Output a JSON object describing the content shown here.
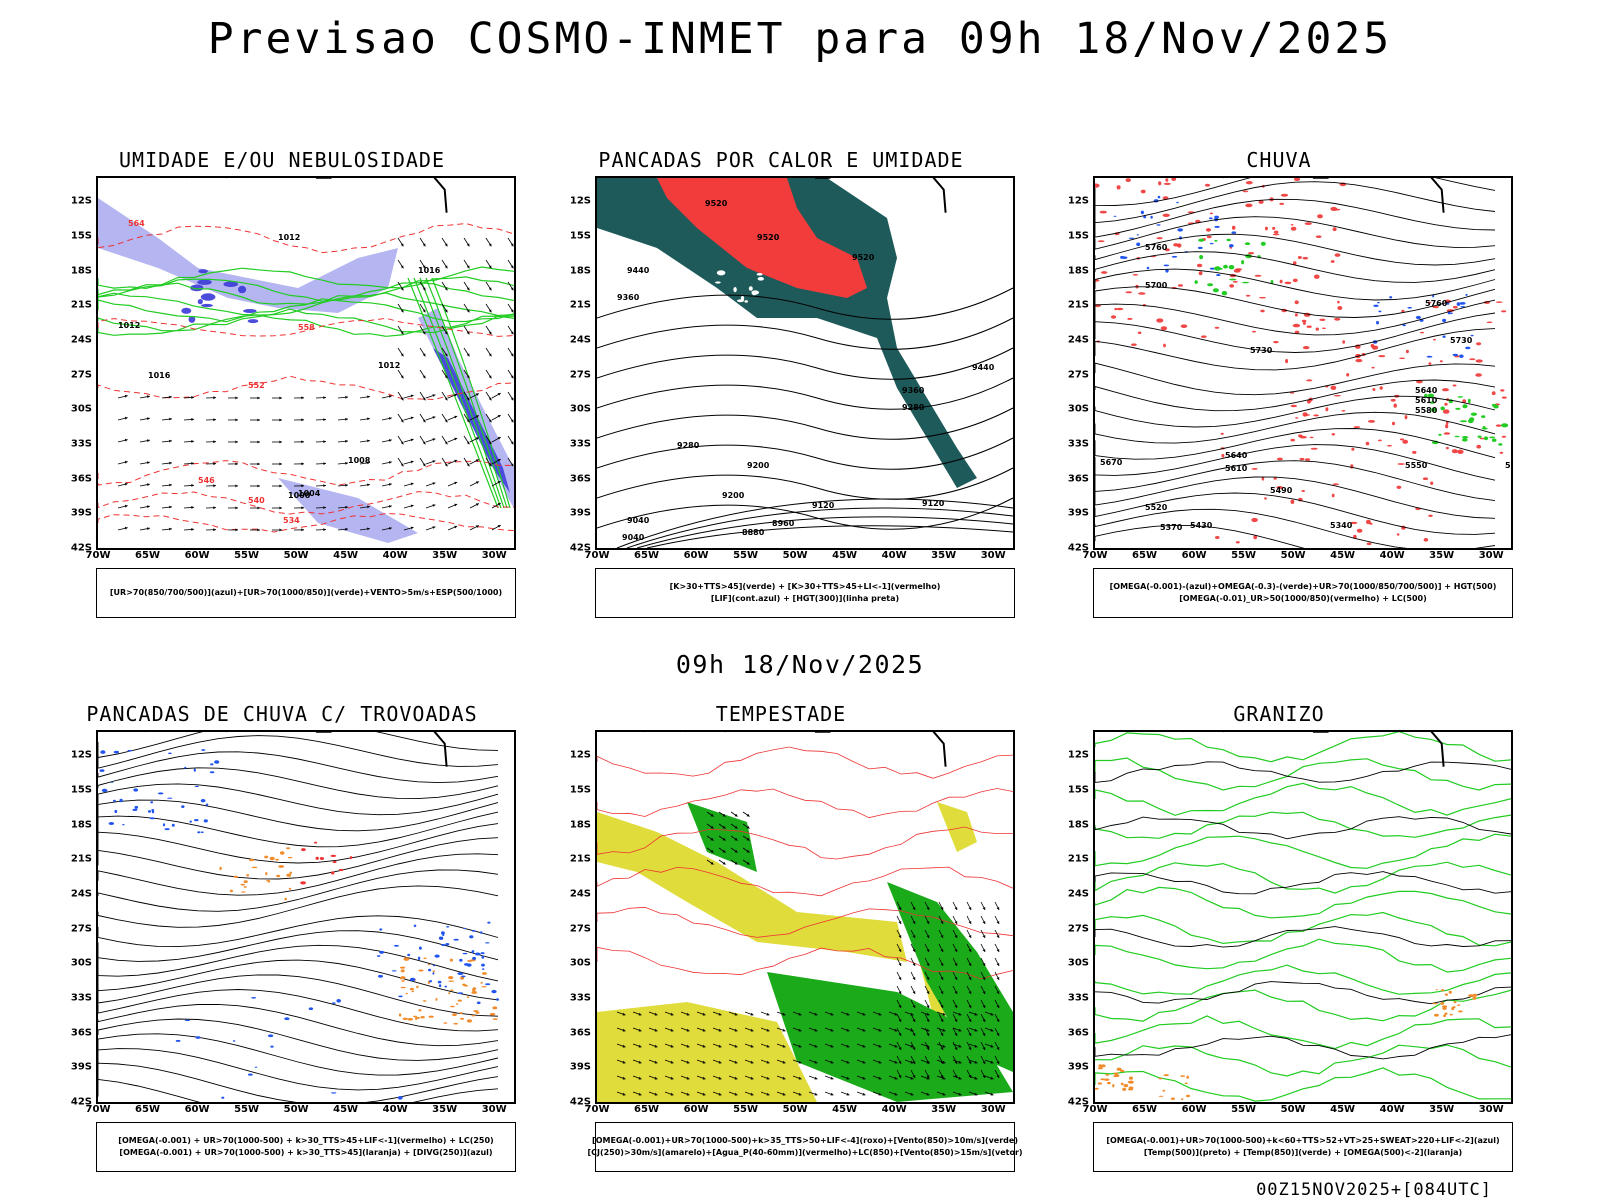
{
  "header": {
    "title": "Previsao COSMO-INMET  para 09h 18/Nov/2025",
    "mid_title": "09h 18/Nov/2025",
    "footer": "00Z15NOV2025+[084UTC]"
  },
  "axes": {
    "lat_ticks": [
      "12S",
      "15S",
      "18S",
      "21S",
      "24S",
      "27S",
      "30S",
      "33S",
      "36S",
      "39S",
      "42S"
    ],
    "lon_ticks": [
      "70W",
      "65W",
      "60W",
      "55W",
      "50W",
      "45W",
      "40W",
      "35W",
      "30W"
    ]
  },
  "colors": {
    "blue_shade": "#a8a8f0",
    "dark_blue_shade": "#3a3ad8",
    "green_contour": "#22cc22",
    "red_contour": "#ee3333",
    "dark_teal": "#1f5a5a",
    "red_fill": "#f23c3c",
    "yellow_fill": "#e0dc3c",
    "green_fill": "#1aaa1a",
    "orange": "#f08c2c",
    "blue_dots": "#2255ee"
  },
  "panels": [
    {
      "id": "umidade",
      "title": "UMIDADE E/OU NEBULOSIDADE",
      "legend": [
        "[UR>70(850/700/500)](azul)+[UR>70(1000/850)](verde)+VENTO>5m/s+ESP(500/1000)"
      ],
      "labels": [
        "1012",
        "1012",
        "1016",
        "1016",
        "1012",
        "1008",
        "1004",
        "1000",
        "564",
        "558",
        "552",
        "546",
        "540",
        "534"
      ]
    },
    {
      "id": "pancadas-calor",
      "title": "PANCADAS POR CALOR E UMIDADE",
      "legend": [
        "[K>30+TTS>45](verde) + [K>30+TTS>45+LI<-1](vermelho)",
        "[LIF](cont.azul) + [HGT(300)](linha preta)"
      ],
      "labels": [
        "9520",
        "9520",
        "9520",
        "9440",
        "9440",
        "9360",
        "9360",
        "9280",
        "9280",
        "9200",
        "9200",
        "9120",
        "9120",
        "9040",
        "9040",
        "8960",
        "8880"
      ]
    },
    {
      "id": "chuva",
      "title": "CHUVA",
      "legend": [
        "[OMEGA(-0.001)-(azul)+OMEGA(-0.3)-(verde)+UR>70(1000/850/700/500)] + HGT(500)",
        "[OMEGA(-0.01)_UR>50(1000/850)(vermelho) + LC(500)"
      ],
      "labels": [
        "5760",
        "5760",
        "5730",
        "5700",
        "5730",
        "5670",
        "5640",
        "5610",
        "5580",
        "5550",
        "5520",
        "5490",
        "5430",
        "5370",
        "5340",
        "5640",
        "5610",
        "5580"
      ]
    },
    {
      "id": "trovoadas",
      "title": "PANCADAS DE CHUVA C/ TROVOADAS",
      "legend": [
        "[OMEGA(-0.001) + UR>70(1000-500) + k>30_TTS>45+LIF<-1](vermelho) + LC(250)",
        "[OMEGA(-0.001) + UR>70(1000-500) + k>30_TTS>45](laranja) + [DIVG(250)](azul)"
      ],
      "labels": []
    },
    {
      "id": "tempestade",
      "title": "TEMPESTADE",
      "legend": [
        "[OMEGA(-0.001)+UR>70(1000-500)+k>35_TTS>50+LIF<-4](roxo)+[Vento(850)>10m/s](verde)",
        "[CJ(250)>30m/s](amarelo)+[Agua_P(40-60mm)](vermelho)+LC(850)+[Vento(850)>15m/s](vetor)"
      ],
      "labels": []
    },
    {
      "id": "granizo",
      "title": "GRANIZO",
      "legend": [
        "[OMEGA(-0.001)+UR>70(1000-500)+k<60+TTS>52+VT>25+SWEAT>220+LIF<-2](azul)",
        "[Temp(500)](preto) + [Temp(850)](verde) + [OMEGA(500)<-2](laranja)"
      ],
      "labels": []
    }
  ]
}
